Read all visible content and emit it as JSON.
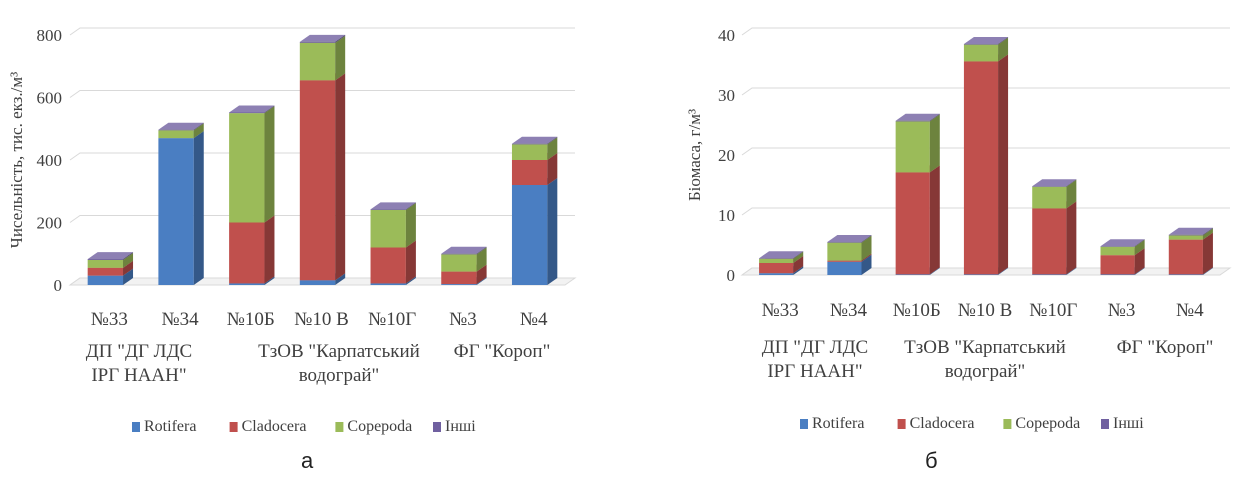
{
  "colors": {
    "Rotifera": "#4a7ec2",
    "Cladocera": "#c0504d",
    "Copepoda": "#9bbb59",
    "Інші": "#7060a0"
  },
  "chart_data": [
    {
      "type": "bar",
      "stacked": true,
      "style": "3d-column",
      "panel_label": "а",
      "categories": [
        "№33",
        "№34",
        "№10Б",
        "№10 В",
        "№10Г",
        "№3",
        "№4"
      ],
      "groups": [
        "ДП \"ДГ ЛДС ІРГ НААН\"",
        "ТзОВ \"Карпатський водограй\"",
        "ФГ \"Короп\""
      ],
      "group_lines": [
        [
          "ДП \"ДГ ЛДС",
          "ІРГ НААН\""
        ],
        [
          "ТзОВ \"Карпатський",
          "водограй\""
        ],
        [
          "ФГ \"Короп\""
        ]
      ],
      "group_spans": [
        [
          0,
          1
        ],
        [
          2,
          4
        ],
        [
          5,
          6
        ]
      ],
      "ylabel": "Чисельність, тис. екз./м³",
      "ylim": [
        0,
        800
      ],
      "yticks": [
        0,
        200,
        400,
        600,
        800
      ],
      "grid": true,
      "legend_position": "bottom",
      "series": [
        {
          "name": "Rotifera",
          "values": [
            30,
            470,
            5,
            15,
            5,
            3,
            320
          ]
        },
        {
          "name": "Cladocera",
          "values": [
            25,
            0,
            195,
            640,
            115,
            40,
            80
          ]
        },
        {
          "name": "Copepoda",
          "values": [
            25,
            25,
            350,
            120,
            120,
            55,
            50
          ]
        },
        {
          "name": "Інші",
          "values": [
            3,
            2,
            2,
            3,
            2,
            2,
            2
          ]
        }
      ]
    },
    {
      "type": "bar",
      "stacked": true,
      "style": "3d-column",
      "panel_label": "б",
      "categories": [
        "№33",
        "№34",
        "№10Б",
        "№10 В",
        "№10Г",
        "№3",
        "№4"
      ],
      "groups": [
        "ДП \"ДГ ЛДС ІРГ НААН\"",
        "ТзОВ \"Карпатський водограй\"",
        "ФГ \"Короп\""
      ],
      "group_lines": [
        [
          "ДП \"ДГ ЛДС",
          "ІРГ НААН\""
        ],
        [
          "ТзОВ \"Карпатський",
          "водограй\""
        ],
        [
          "ФГ \"Короп\""
        ]
      ],
      "group_spans": [
        [
          0,
          1
        ],
        [
          2,
          4
        ],
        [
          5,
          6
        ]
      ],
      "ylabel": "Біомаса, г/м³",
      "ylim": [
        0,
        40
      ],
      "yticks": [
        0,
        10,
        20,
        30,
        40
      ],
      "grid": true,
      "legend_position": "bottom",
      "series": [
        {
          "name": "Rotifera",
          "values": [
            0.3,
            2.2,
            0.1,
            0.1,
            0.1,
            0.1,
            0.1
          ]
        },
        {
          "name": "Cladocera",
          "values": [
            1.7,
            0.2,
            17.0,
            35.5,
            11.0,
            3.2,
            5.8
          ]
        },
        {
          "name": "Copepoda",
          "values": [
            0.7,
            3.0,
            8.5,
            2.8,
            3.6,
            1.4,
            0.7
          ]
        },
        {
          "name": "Інші",
          "values": [
            0.1,
            0.1,
            0.1,
            0.1,
            0.1,
            0.1,
            0.1
          ]
        }
      ]
    }
  ]
}
